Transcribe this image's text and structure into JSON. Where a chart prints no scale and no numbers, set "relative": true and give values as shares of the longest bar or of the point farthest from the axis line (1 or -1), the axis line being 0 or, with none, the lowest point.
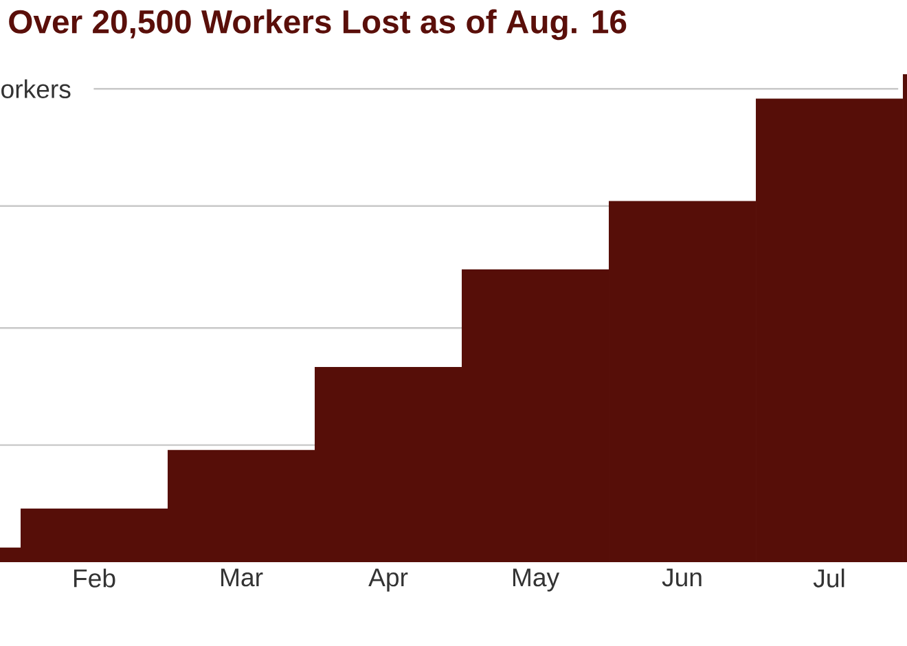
{
  "chart_data": {
    "type": "bar",
    "title": "Over 20,500 Workers Lost as of Aug. 16",
    "categories": [
      null,
      "Feb",
      "Mar",
      "Apr",
      "May",
      "Jun",
      "Jul",
      null
    ],
    "values": [
      0.03,
      0.11,
      0.23,
      0.4,
      0.6,
      0.74,
      0.95,
      1.0
    ],
    "color": "#560e08",
    "relative": true,
    "ref_lines": [
      {
        "axis": "y",
        "value": 0.24,
        "color": "#c8c8c8"
      },
      {
        "axis": "y",
        "value": 0.48,
        "color": "#c8c8c8"
      },
      {
        "axis": "y",
        "value": 0.73,
        "color": "#c8c8c8"
      },
      {
        "axis": "y",
        "value": 0.97,
        "label": "orkers",
        "color": "#c8c8c8"
      }
    ]
  }
}
